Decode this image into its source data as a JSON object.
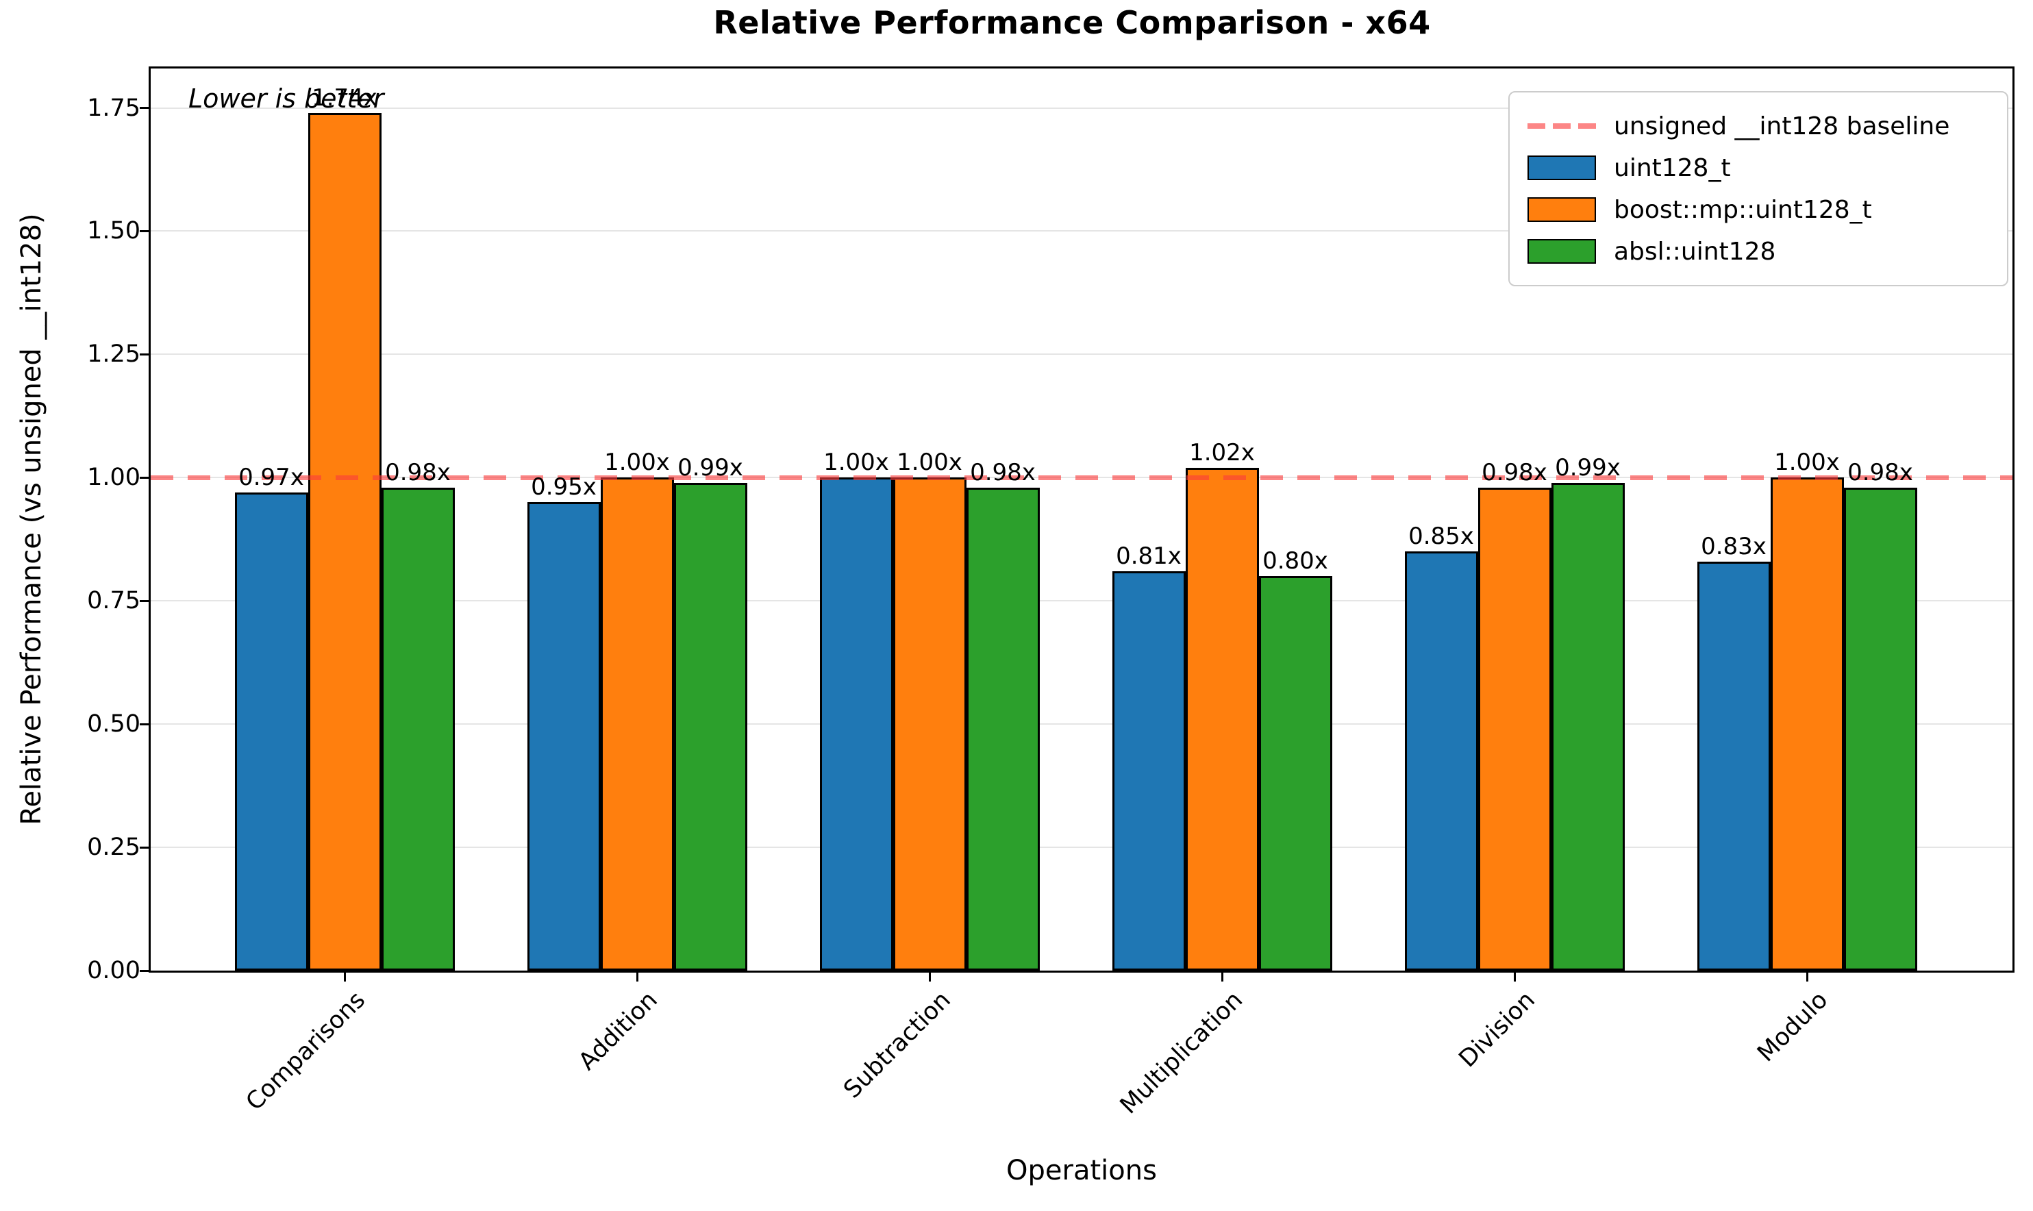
{
  "chart_data": {
    "type": "bar",
    "title": "Relative Performance Comparison - x64",
    "xlabel": "Operations",
    "ylabel": "Relative Performance (vs unsigned __int128)",
    "annotation": "Lower is better",
    "categories": [
      "Comparisons",
      "Addition",
      "Subtraction",
      "Multiplication",
      "Division",
      "Modulo"
    ],
    "series": [
      {
        "name": "uint128_t",
        "color": "#1f77b4",
        "values": [
          0.97,
          0.95,
          1.0,
          0.81,
          0.85,
          0.83
        ],
        "labels": [
          "0.97x",
          "0.95x",
          "1.00x",
          "0.81x",
          "0.85x",
          "0.83x"
        ]
      },
      {
        "name": "boost::mp::uint128_t",
        "color": "#ff7f0e",
        "values": [
          1.74,
          1.0,
          1.0,
          1.02,
          0.98,
          1.0
        ],
        "labels": [
          "1.74x",
          "1.00x",
          "1.00x",
          "1.02x",
          "0.98x",
          "1.00x"
        ]
      },
      {
        "name": "absl::uint128",
        "color": "#2ca02c",
        "values": [
          0.98,
          0.99,
          0.98,
          0.8,
          0.99,
          0.98
        ],
        "labels": [
          "0.98x",
          "0.99x",
          "0.98x",
          "0.80x",
          "0.99x",
          "0.98x"
        ]
      }
    ],
    "baseline": {
      "value": 1.0,
      "label": "unsigned __int128 baseline",
      "color": "rgba(250,60,60,0.62)"
    },
    "ytick_labels": [
      "0.00",
      "0.25",
      "0.50",
      "0.75",
      "1.00",
      "1.25",
      "1.50",
      "1.75"
    ],
    "yticks": [
      0.0,
      0.25,
      0.5,
      0.75,
      1.0,
      1.25,
      1.5,
      1.75
    ],
    "ylim": [
      0,
      1.83
    ],
    "grid": true,
    "grid_color": "#e5e5e5",
    "bar_edge_color": "#000000",
    "legend_position": "upper right"
  }
}
